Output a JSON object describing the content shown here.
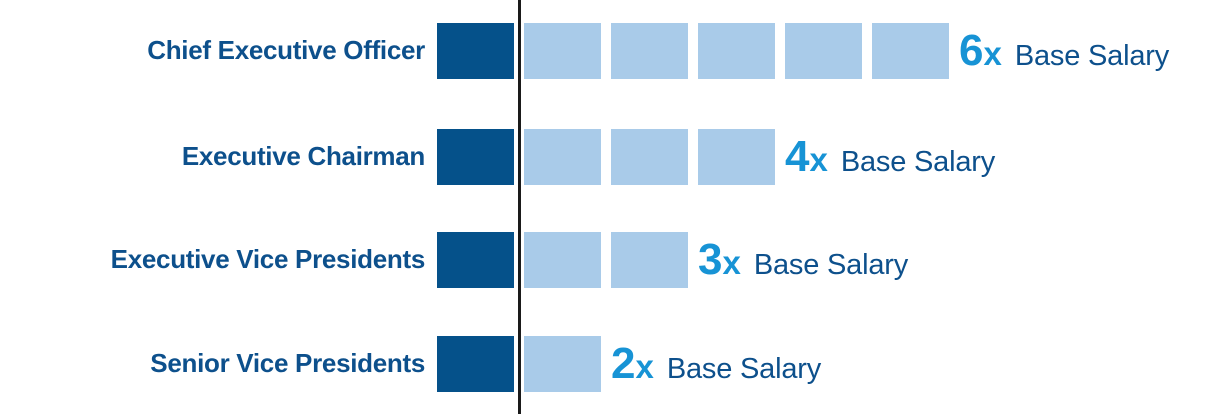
{
  "chart_data": {
    "type": "bar",
    "title": "",
    "categories": [
      "Chief Executive Officer",
      "Executive Chairman",
      "Executive Vice Presidents",
      "Senior Vice Presidents"
    ],
    "values": [
      6,
      4,
      3,
      2
    ],
    "value_suffix": "Base Salary",
    "legend": [],
    "layout_hints": {
      "orientation": "horizontal",
      "grid": false,
      "baseline_axis": "vertical line after first unit square",
      "unit_squares_per_row": [
        6,
        4,
        3,
        2
      ]
    },
    "rows": [
      {
        "label": "Chief Executive Officer",
        "value": 6,
        "number": "6",
        "times": "x",
        "suffix": "Base Salary",
        "dark_squares": 1,
        "light_squares": 5
      },
      {
        "label": "Executive Chairman",
        "value": 4,
        "number": "4",
        "times": "x",
        "suffix": "Base Salary",
        "dark_squares": 1,
        "light_squares": 3
      },
      {
        "label": "Executive Vice Presidents",
        "value": 3,
        "number": "3",
        "times": "x",
        "suffix": "Base Salary",
        "dark_squares": 1,
        "light_squares": 2
      },
      {
        "label": "Senior Vice Presidents",
        "value": 2,
        "number": "2",
        "times": "x",
        "suffix": "Base Salary",
        "dark_squares": 1,
        "light_squares": 1
      }
    ],
    "colors": {
      "dark_square": "#05518a",
      "light_square": "#a9cbe9",
      "multiplier_text": "#1793d5",
      "label_text": "#0d508c",
      "axis_line": "#1a1a1a"
    }
  }
}
